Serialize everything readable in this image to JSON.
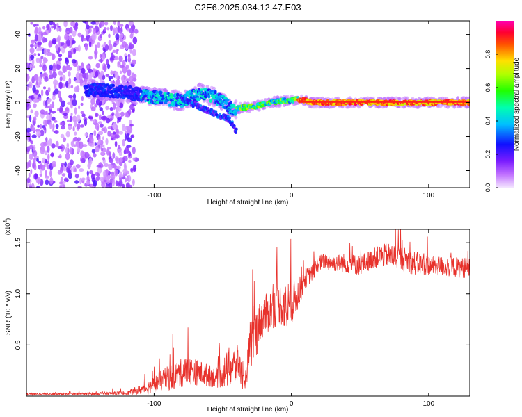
{
  "title": "C2E6.2025.034.12.47.E03",
  "colors": {
    "snr_line": "#e8322c",
    "axis": "#000000",
    "background": "#ffffff"
  },
  "chart_data": [
    {
      "type": "heatmap",
      "title": "C2E6.2025.034.12.47.E03",
      "xlabel": "Height of straight line (km)",
      "ylabel": "Frequency (Hz)",
      "xlim": [
        -193,
        130
      ],
      "ylim": [
        -50,
        48
      ],
      "x_ticks": [
        "-100",
        "0",
        "100"
      ],
      "x_tick_values": [
        -100,
        0,
        100
      ],
      "y_ticks": [
        "40",
        "20",
        "0",
        "-20",
        "-40"
      ],
      "y_tick_values": [
        40,
        20,
        0,
        -20,
        -40
      ],
      "colorbar": {
        "label": "Normalized spectral amplitude",
        "ticks": [
          "0.0",
          "0.2",
          "0.4",
          "0.6",
          "0.8"
        ],
        "tick_values": [
          0.0,
          0.2,
          0.4,
          0.6,
          0.8
        ],
        "range": [
          0,
          1
        ],
        "colormap": "rainbow (violet-blue-cyan-green-yellow-red-magenta)"
      },
      "features": {
        "noise_region_x": [
          -193,
          -113
        ],
        "tone_track": [
          {
            "x": -150,
            "y": 8
          },
          {
            "x": -120,
            "y": 6
          },
          {
            "x": -100,
            "y": 3
          },
          {
            "x": -80,
            "y": 1
          },
          {
            "x": -65,
            "y": 6
          },
          {
            "x": -55,
            "y": 3
          },
          {
            "x": -48,
            "y": -1
          },
          {
            "x": -42,
            "y": -4
          },
          {
            "x": -35,
            "y": -3
          },
          {
            "x": -25,
            "y": -2
          },
          {
            "x": -15,
            "y": 0
          },
          {
            "x": -5,
            "y": 1
          },
          {
            "x": 5,
            "y": 2
          },
          {
            "x": 15,
            "y": 0
          },
          {
            "x": 130,
            "y": 0
          }
        ],
        "lower_branch": [
          {
            "x": -80,
            "y": 2
          },
          {
            "x": -60,
            "y": -5
          },
          {
            "x": -45,
            "y": -10
          },
          {
            "x": -40,
            "y": -17
          }
        ]
      }
    },
    {
      "type": "line",
      "xlabel": "Height of straight line (km)",
      "ylabel": "SNR (10 * v/v)",
      "y_scale_label": "(x10",
      "y_scale_exponent": "4",
      "xlim": [
        -193,
        130
      ],
      "ylim": [
        0,
        1.63
      ],
      "x_ticks": [
        "-100",
        "0",
        "100"
      ],
      "x_tick_values": [
        -100,
        0,
        100
      ],
      "y_ticks": [
        "0.5",
        "1.0",
        "1.5"
      ],
      "y_tick_values": [
        0.5,
        1.0,
        1.5
      ],
      "series": [
        {
          "color": "#e8322c",
          "envelope_x": [
            -193,
            -160,
            -120,
            -105,
            -95,
            -85,
            -75,
            -65,
            -55,
            -45,
            -38,
            -34,
            -30,
            -26,
            -22,
            -15,
            -8,
            -3,
            5,
            10,
            15,
            20,
            25,
            30,
            40,
            50,
            60,
            70,
            80,
            90,
            100,
            110,
            120,
            130
          ],
          "envelope_y": [
            0.02,
            0.02,
            0.03,
            0.08,
            0.15,
            0.2,
            0.25,
            0.22,
            0.18,
            0.28,
            0.3,
            0.1,
            0.5,
            0.6,
            0.75,
            0.85,
            0.9,
            0.85,
            1.0,
            1.15,
            1.2,
            1.3,
            1.32,
            1.3,
            1.3,
            1.28,
            1.35,
            1.38,
            1.35,
            1.3,
            1.28,
            1.27,
            1.26,
            1.25
          ],
          "noise_amplitude": [
            0.01,
            0.01,
            0.02,
            0.06,
            0.1,
            0.14,
            0.14,
            0.12,
            0.1,
            0.2,
            0.2,
            0.05,
            0.25,
            0.25,
            0.2,
            0.2,
            0.2,
            0.25,
            0.15,
            0.1,
            0.08,
            0.08,
            0.08,
            0.08,
            0.1,
            0.1,
            0.1,
            0.12,
            0.12,
            0.12,
            0.1,
            0.1,
            0.1,
            0.1
          ]
        }
      ]
    }
  ]
}
